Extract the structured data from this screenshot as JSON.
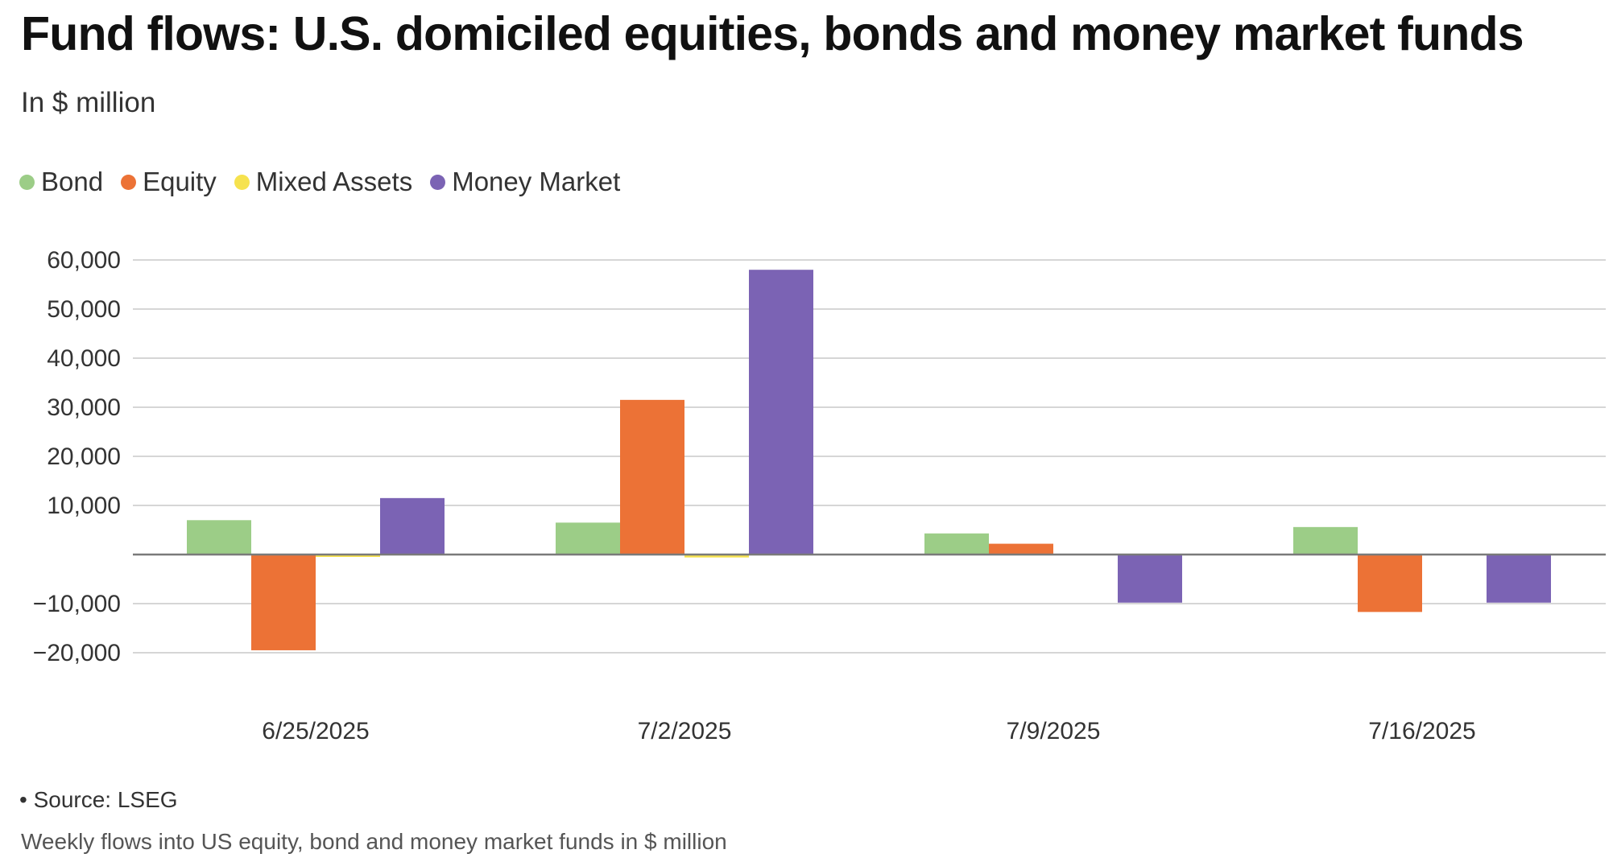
{
  "header": {
    "title": "Fund flows: U.S. domiciled equities, bonds and money market funds",
    "subtitle": "In $ million"
  },
  "footer": {
    "source": "• Source: LSEG",
    "caption": "Weekly flows into US equity, bond and money market funds in $ million"
  },
  "chart_data": {
    "type": "bar",
    "title": "Fund flows: U.S. domiciled equities, bonds and money market funds",
    "subtitle": "In $ million",
    "categories": [
      "6/25/2025",
      "7/2/2025",
      "7/9/2025",
      "7/16/2025"
    ],
    "series": [
      {
        "name": "Bond",
        "color": "#9ccd87",
        "values": [
          7000,
          6500,
          4300,
          5600
        ]
      },
      {
        "name": "Equity",
        "color": "#ec7236",
        "values": [
          -19500,
          31500,
          2200,
          -11700
        ]
      },
      {
        "name": "Mixed Assets",
        "color": "#f6e24e",
        "values": [
          -300,
          -600,
          0,
          0
        ]
      },
      {
        "name": "Money Market",
        "color": "#7b63b4",
        "values": [
          11500,
          58000,
          -9800,
          -9800
        ]
      }
    ],
    "yticks": [
      -20000,
      -10000,
      10000,
      20000,
      30000,
      40000,
      50000,
      60000
    ],
    "ytick_labels": [
      "−20,000",
      "−10,000",
      "10,000",
      "20,000",
      "30,000",
      "40,000",
      "50,000",
      "60,000"
    ],
    "ylim": [
      -25000,
      62000
    ],
    "xlabel": "",
    "ylabel": "",
    "grid": true,
    "legend_position": "top-left"
  }
}
